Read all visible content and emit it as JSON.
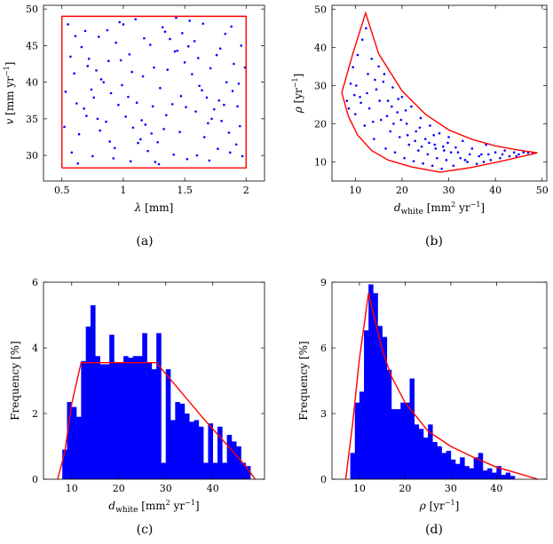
{
  "chart_data": [
    {
      "id": "a",
      "type": "scatter",
      "caption": "(a)",
      "xlabel": "λ [mm]",
      "ylabel": "v [mm yr⁻¹]",
      "xlim": [
        0.35,
        2.15
      ],
      "ylim": [
        26.5,
        50.5
      ],
      "xticks": [
        0.5,
        1,
        1.5,
        2
      ],
      "xtick_labels": [
        "0.5",
        "1",
        "1.5",
        "2"
      ],
      "yticks": [
        30,
        35,
        40,
        45,
        50
      ],
      "ytick_labels": [
        "30",
        "35",
        "40",
        "45",
        "50"
      ],
      "bounds": [
        [
          0.5,
          28.3
        ],
        [
          2.0,
          28.3
        ],
        [
          2.0,
          49.0
        ],
        [
          0.5,
          49.0
        ],
        [
          0.5,
          28.3
        ]
      ],
      "points": [
        [
          0.55,
          47.9
        ],
        [
          0.61,
          46.3
        ],
        [
          0.66,
          44.8
        ],
        [
          0.72,
          43.2
        ],
        [
          0.78,
          41.6
        ],
        [
          0.84,
          40.0
        ],
        [
          0.9,
          38.5
        ],
        [
          0.96,
          36.9
        ],
        [
          1.02,
          35.3
        ],
        [
          1.08,
          33.8
        ],
        [
          1.14,
          32.2
        ],
        [
          1.2,
          30.6
        ],
        [
          1.26,
          29.1
        ],
        [
          1.32,
          47.5
        ],
        [
          1.38,
          45.9
        ],
        [
          1.44,
          44.3
        ],
        [
          1.5,
          42.7
        ],
        [
          1.56,
          41.1
        ],
        [
          1.62,
          39.5
        ],
        [
          1.68,
          37.9
        ],
        [
          1.74,
          36.3
        ],
        [
          1.8,
          34.7
        ],
        [
          1.86,
          33.1
        ],
        [
          1.92,
          31.5
        ],
        [
          1.97,
          29.9
        ],
        [
          0.58,
          30.4
        ],
        [
          0.64,
          32.9
        ],
        [
          0.7,
          35.4
        ],
        [
          0.76,
          37.9
        ],
        [
          0.82,
          40.4
        ],
        [
          0.88,
          42.9
        ],
        [
          0.94,
          45.4
        ],
        [
          1.0,
          47.9
        ],
        [
          1.06,
          29.2
        ],
        [
          1.12,
          31.7
        ],
        [
          1.18,
          34.2
        ],
        [
          1.24,
          36.7
        ],
        [
          1.3,
          39.2
        ],
        [
          1.36,
          41.7
        ],
        [
          1.42,
          44.2
        ],
        [
          1.48,
          46.7
        ],
        [
          1.54,
          48.4
        ],
        [
          1.6,
          30.0
        ],
        [
          1.66,
          32.5
        ],
        [
          1.72,
          35.0
        ],
        [
          1.78,
          37.5
        ],
        [
          1.84,
          40.0
        ],
        [
          1.9,
          42.5
        ],
        [
          1.96,
          45.0
        ],
        [
          0.53,
          38.7
        ],
        [
          0.6,
          41.2
        ],
        [
          0.68,
          36.4
        ],
        [
          0.75,
          29.9
        ],
        [
          0.81,
          33.4
        ],
        [
          0.87,
          47.1
        ],
        [
          0.93,
          31.0
        ],
        [
          0.99,
          39.6
        ],
        [
          1.05,
          43.8
        ],
        [
          1.11,
          37.2
        ],
        [
          1.17,
          46.0
        ],
        [
          1.23,
          33.0
        ],
        [
          1.29,
          28.8
        ],
        [
          1.35,
          35.5
        ],
        [
          1.41,
          30.1
        ],
        [
          1.47,
          38.1
        ],
        [
          1.53,
          44.9
        ],
        [
          1.59,
          36.0
        ],
        [
          1.65,
          48.0
        ],
        [
          1.71,
          41.9
        ],
        [
          1.77,
          30.9
        ],
        [
          1.83,
          46.6
        ],
        [
          1.89,
          38.8
        ],
        [
          1.95,
          34.0
        ],
        [
          0.57,
          43.5
        ],
        [
          0.63,
          28.9
        ],
        [
          0.69,
          47.0
        ],
        [
          0.74,
          39.0
        ],
        [
          0.8,
          46.2
        ],
        [
          0.86,
          34.6
        ],
        [
          0.92,
          29.6
        ],
        [
          0.98,
          43.0
        ],
        [
          1.04,
          38.0
        ],
        [
          1.1,
          48.6
        ],
        [
          1.16,
          40.8
        ],
        [
          1.22,
          45.1
        ],
        [
          1.28,
          31.8
        ],
        [
          1.34,
          46.9
        ],
        [
          1.4,
          37.0
        ],
        [
          1.46,
          33.2
        ],
        [
          1.52,
          29.5
        ],
        [
          1.58,
          45.6
        ],
        [
          1.64,
          38.9
        ],
        [
          1.7,
          29.3
        ],
        [
          1.76,
          43.7
        ],
        [
          1.82,
          36.9
        ],
        [
          1.88,
          47.6
        ],
        [
          1.94,
          39.8
        ],
        [
          1.99,
          42.0
        ],
        [
          0.52,
          33.9
        ],
        [
          0.62,
          37.1
        ],
        [
          0.71,
          42.2
        ],
        [
          0.79,
          35.0
        ],
        [
          0.89,
          31.9
        ],
        [
          0.97,
          48.2
        ],
        [
          1.07,
          41.4
        ],
        [
          1.15,
          34.8
        ],
        [
          1.25,
          42.0
        ],
        [
          1.33,
          33.6
        ],
        [
          1.43,
          48.8
        ],
        [
          1.51,
          36.6
        ],
        [
          1.61,
          43.3
        ],
        [
          1.69,
          34.4
        ],
        [
          1.79,
          44.6
        ],
        [
          1.87,
          30.4
        ],
        [
          1.93,
          36.7
        ]
      ]
    },
    {
      "id": "b",
      "type": "scatter",
      "caption": "(b)",
      "xlabel": "d_white [mm² yr⁻¹]",
      "ylabel": "ρ [yr⁻¹]",
      "xlim": [
        5,
        51
      ],
      "ylim": [
        5,
        51
      ],
      "xticks": [
        10,
        20,
        30,
        40,
        50
      ],
      "xtick_labels": [
        "10",
        "20",
        "30",
        "40",
        "50"
      ],
      "yticks": [
        10,
        20,
        30,
        40,
        50
      ],
      "ytick_labels": [
        "10",
        "20",
        "30",
        "40",
        "50"
      ],
      "bounds_upper": [
        [
          7.1,
          28.1
        ],
        [
          9.5,
          38.5
        ],
        [
          12.2,
          49.0
        ],
        [
          15,
          38.3
        ],
        [
          20,
          28.6
        ],
        [
          25,
          22.5
        ],
        [
          30,
          18.4
        ],
        [
          35,
          15.9
        ],
        [
          40,
          14.2
        ],
        [
          45,
          13.1
        ],
        [
          49.0,
          12.4
        ]
      ],
      "bounds_lower": [
        [
          7.1,
          28.1
        ],
        [
          8.5,
          22.0
        ],
        [
          10.5,
          17.0
        ],
        [
          13.5,
          13.0
        ],
        [
          17.0,
          10.5
        ],
        [
          22.0,
          8.7
        ],
        [
          28.2,
          7.3
        ],
        [
          35.0,
          8.6
        ],
        [
          42.0,
          10.4
        ],
        [
          49.0,
          12.4
        ]
      ],
      "points": [
        [
          8.2,
          26.0
        ],
        [
          9.0,
          30.5
        ],
        [
          9.5,
          34.8
        ],
        [
          10.0,
          22.5
        ],
        [
          10.5,
          38.0
        ],
        [
          11.0,
          27.0
        ],
        [
          11.5,
          42.0
        ],
        [
          12.0,
          19.5
        ],
        [
          12.3,
          45.0
        ],
        [
          12.7,
          33.0
        ],
        [
          13.0,
          24.0
        ],
        [
          13.5,
          37.0
        ],
        [
          14.0,
          16.0
        ],
        [
          14.5,
          29.0
        ],
        [
          15.0,
          35.0
        ],
        [
          15.5,
          21.0
        ],
        [
          16.0,
          31.0
        ],
        [
          16.5,
          13.5
        ],
        [
          17.0,
          26.0
        ],
        [
          17.5,
          18.0
        ],
        [
          18.0,
          29.5
        ],
        [
          18.5,
          12.5
        ],
        [
          19.0,
          23.0
        ],
        [
          19.5,
          16.5
        ],
        [
          20.0,
          27.0
        ],
        [
          20.5,
          11.0
        ],
        [
          21.0,
          20.0
        ],
        [
          21.5,
          14.5
        ],
        [
          22.0,
          24.5
        ],
        [
          22.5,
          10.2
        ],
        [
          23.0,
          18.0
        ],
        [
          23.5,
          13.0
        ],
        [
          24.0,
          21.5
        ],
        [
          24.5,
          9.6
        ],
        [
          25.0,
          16.0
        ],
        [
          25.5,
          12.0
        ],
        [
          26.0,
          19.5
        ],
        [
          26.5,
          9.0
        ],
        [
          27.0,
          14.5
        ],
        [
          27.5,
          11.0
        ],
        [
          28.0,
          17.5
        ],
        [
          28.5,
          8.2
        ],
        [
          29.0,
          13.0
        ],
        [
          29.5,
          10.5
        ],
        [
          30.0,
          16.5
        ],
        [
          31.0,
          9.0
        ],
        [
          32.0,
          12.5
        ],
        [
          33.0,
          15.5
        ],
        [
          34.0,
          10.0
        ],
        [
          35.0,
          13.5
        ],
        [
          36.0,
          9.5
        ],
        [
          37.0,
          12.0
        ],
        [
          38.0,
          14.5
        ],
        [
          39.0,
          10.5
        ],
        [
          40.0,
          12.5
        ],
        [
          41.0,
          11.0
        ],
        [
          42.0,
          13.0
        ],
        [
          43.0,
          11.5
        ],
        [
          44.0,
          12.5
        ],
        [
          45.0,
          12.0
        ],
        [
          46.0,
          12.5
        ],
        [
          47.0,
          12.4
        ],
        [
          48.0,
          12.4
        ],
        [
          10.2,
          30.0
        ],
        [
          11.2,
          25.5
        ],
        [
          12.5,
          28.0
        ],
        [
          13.8,
          20.5
        ],
        [
          15.2,
          26.0
        ],
        [
          16.8,
          22.0
        ],
        [
          18.2,
          20.0
        ],
        [
          19.8,
          21.0
        ],
        [
          21.2,
          17.0
        ],
        [
          22.8,
          15.5
        ],
        [
          24.2,
          14.0
        ],
        [
          25.8,
          15.0
        ],
        [
          27.2,
          13.5
        ],
        [
          28.8,
          14.0
        ],
        [
          30.5,
          12.5
        ],
        [
          32.5,
          11.0
        ],
        [
          34.5,
          12.0
        ],
        [
          36.5,
          11.5
        ],
        [
          38.5,
          12.0
        ],
        [
          8.6,
          24.0
        ],
        [
          9.8,
          27.5
        ],
        [
          14.2,
          31.5
        ],
        [
          16.2,
          33.0
        ],
        [
          17.8,
          24.5
        ],
        [
          19.2,
          26.5
        ],
        [
          20.8,
          23.5
        ],
        [
          23.8,
          19.0
        ],
        [
          26.8,
          17.0
        ],
        [
          29.8,
          15.0
        ],
        [
          31.5,
          13.8
        ],
        [
          33.5,
          10.5
        ],
        [
          37.5,
          10.0
        ],
        [
          41.5,
          12.0
        ],
        [
          44.5,
          11.5
        ]
      ]
    },
    {
      "id": "c",
      "type": "bar",
      "caption": "(c)",
      "xlabel": "d_white [mm² yr⁻¹]",
      "ylabel": "Frequency [%]",
      "xlim": [
        4,
        51
      ],
      "ylim": [
        0,
        6
      ],
      "xticks": [
        10,
        20,
        30,
        40
      ],
      "xtick_labels": [
        "10",
        "20",
        "30",
        "40"
      ],
      "yticks": [
        0,
        2,
        4,
        6
      ],
      "ytick_labels": [
        "0",
        "2",
        "4",
        "6"
      ],
      "bin_width": 1.0,
      "bin_starts": [
        8,
        9,
        10,
        11,
        12,
        13,
        14,
        15,
        16,
        17,
        18,
        19,
        20,
        21,
        22,
        23,
        24,
        25,
        26,
        27,
        28,
        29,
        30,
        31,
        32,
        33,
        34,
        35,
        36,
        37,
        38,
        39,
        40,
        41,
        42,
        43,
        44,
        45,
        46,
        47
      ],
      "values": [
        0.9,
        2.35,
        2.2,
        1.9,
        3.6,
        4.65,
        5.3,
        3.75,
        3.5,
        3.5,
        4.4,
        3.55,
        3.55,
        3.75,
        3.7,
        3.75,
        3.75,
        4.45,
        3.55,
        3.35,
        4.45,
        0.5,
        3.35,
        1.8,
        2.35,
        2.3,
        2.0,
        1.75,
        1.8,
        1.6,
        0.5,
        1.7,
        0.5,
        1.6,
        0.5,
        1.35,
        1.15,
        1.0,
        0.5,
        0.4
      ],
      "density_curve": [
        [
          7.0,
          0
        ],
        [
          8.5,
          0.8
        ],
        [
          10.0,
          2.3
        ],
        [
          12.0,
          3.55
        ],
        [
          28.0,
          3.55
        ],
        [
          33.0,
          2.7
        ],
        [
          38.0,
          1.85
        ],
        [
          43.0,
          1.05
        ],
        [
          47.0,
          0.4
        ],
        [
          49.0,
          0
        ]
      ]
    },
    {
      "id": "d",
      "type": "bar",
      "caption": "(d)",
      "xlabel": "ρ [yr⁻¹]",
      "ylabel": "Frequency [%]",
      "xlim": [
        4,
        51
      ],
      "ylim": [
        0,
        9
      ],
      "xticks": [
        10,
        20,
        30,
        40
      ],
      "xtick_labels": [
        "10",
        "20",
        "30",
        "40"
      ],
      "yticks": [
        0,
        3,
        6,
        9
      ],
      "ytick_labels": [
        "0",
        "3",
        "6",
        "9"
      ],
      "bin_width": 1.0,
      "bin_starts": [
        8,
        9,
        10,
        11,
        12,
        13,
        14,
        15,
        16,
        17,
        18,
        19,
        20,
        21,
        22,
        23,
        24,
        25,
        26,
        27,
        28,
        29,
        30,
        31,
        32,
        33,
        34,
        35,
        36,
        37,
        38,
        39,
        40,
        41,
        42,
        43
      ],
      "values": [
        1.2,
        3.5,
        4.0,
        6.8,
        8.9,
        8.5,
        7.0,
        6.5,
        5.0,
        3.2,
        3.2,
        3.5,
        3.5,
        4.6,
        2.5,
        2.3,
        1.9,
        2.5,
        1.7,
        1.5,
        1.2,
        1.3,
        0.9,
        0.7,
        1.0,
        0.6,
        0.5,
        1.0,
        1.2,
        0.4,
        0.5,
        0.3,
        0.6,
        0.2,
        0.3,
        0.15
      ],
      "density_curve": [
        [
          7.0,
          0
        ],
        [
          8.5,
          2.5
        ],
        [
          10.0,
          5.5
        ],
        [
          12.0,
          8.5
        ],
        [
          13.0,
          7.6
        ],
        [
          15.0,
          5.9
        ],
        [
          17.0,
          4.7
        ],
        [
          20.0,
          3.5
        ],
        [
          25.0,
          2.2
        ],
        [
          30.0,
          1.5
        ],
        [
          35.0,
          1.0
        ],
        [
          40.0,
          0.55
        ],
        [
          45.0,
          0.25
        ],
        [
          49.0,
          0
        ]
      ]
    }
  ]
}
